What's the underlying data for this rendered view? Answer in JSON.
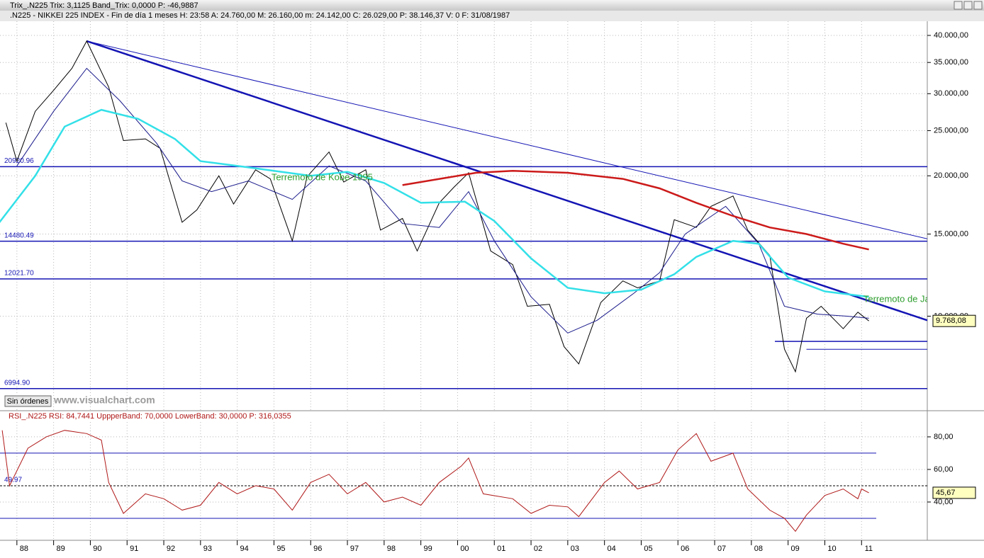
{
  "window": {
    "title": "Trix_.N225  Trix: 3,1125  Band_Trix: 0,0000  P: -46,9887",
    "button": "Sin órdenes",
    "watermark": "www.visualchart.com"
  },
  "chart_data": [
    {
      "type": "line",
      "title": ".N225 - NIKKEI 225 INDEX - Fin de día 1 meses  H: 23:58  A: 24.760,00  M: 26.160,00  m: 24.142,00  C: 26.029,00  P: 38.146,37  V: 0  F: 31/08/1987",
      "yscale": "log",
      "grid": true,
      "xlim": [
        1987.54,
        2012.79
      ],
      "ylim": [
        6270,
        42900
      ],
      "yticks": [
        {
          "value": 10000,
          "label": "10.000,00"
        },
        {
          "value": 15000,
          "label": "15.000,00"
        },
        {
          "value": 20000,
          "label": "20.000,00"
        },
        {
          "value": 25000,
          "label": "25.000,00"
        },
        {
          "value": 30000,
          "label": "30.000,00"
        },
        {
          "value": 35000,
          "label": "35.000,00"
        },
        {
          "value": 40000,
          "label": "40.000,00"
        }
      ],
      "series": [
        {
          "name": "N225",
          "color": "#000000",
          "width": 1,
          "x": [
            1987.7,
            1988.0,
            1988.5,
            1989.0,
            1989.5,
            1989.9,
            1990.5,
            1990.9,
            1991.5,
            1991.9,
            1992.5,
            1992.9,
            1993.5,
            1993.9,
            1994.5,
            1994.9,
            1995.5,
            1995.9,
            1996.5,
            1996.9,
            1997.5,
            1997.9,
            1998.5,
            1998.9,
            1999.5,
            1999.9,
            2000.3,
            2000.9,
            2001.5,
            2001.9,
            2002.5,
            2002.9,
            2003.3,
            2003.9,
            2004.5,
            2004.9,
            2005.5,
            2005.9,
            2006.5,
            2006.9,
            2007.5,
            2007.9,
            2008.5,
            2008.9,
            2009.2,
            2009.5,
            2009.9,
            2010.5,
            2010.9,
            2011.2
          ],
          "values": [
            26000,
            21500,
            27500,
            30500,
            34000,
            38900,
            31000,
            23800,
            24000,
            22900,
            15900,
            16900,
            20000,
            17400,
            20600,
            19700,
            14500,
            19900,
            22500,
            19400,
            20600,
            15300,
            16200,
            13800,
            17500,
            18900,
            20300,
            13800,
            12900,
            10500,
            10600,
            8600,
            7900,
            10700,
            11900,
            11500,
            11900,
            16100,
            15500,
            17200,
            18100,
            15300,
            13500,
            8500,
            7600,
            9900,
            10500,
            9400,
            10200,
            9768.08
          ]
        },
        {
          "name": "MA short",
          "color": "#1a1a8c",
          "width": 1,
          "x": [
            1988.0,
            1989.0,
            1989.9,
            1990.8,
            1991.8,
            1992.5,
            1993.3,
            1994.3,
            1995.5,
            1996.5,
            1997.5,
            1998.5,
            1999.5,
            2000.3,
            2001.0,
            2002.0,
            2003.0,
            2003.8,
            2004.8,
            2005.5,
            2006.2,
            2007.3,
            2008.2,
            2008.9,
            2009.8,
            2010.6,
            2011.2
          ],
          "values": [
            21000,
            27500,
            34000,
            29000,
            23500,
            19500,
            18500,
            19500,
            17800,
            21000,
            19500,
            15800,
            15500,
            18500,
            14500,
            11000,
            9200,
            9800,
            11200,
            12400,
            15000,
            17200,
            14300,
            10500,
            10100,
            10000,
            9900
          ]
        },
        {
          "name": "MA long",
          "color": "#33e0e8",
          "width": 2.5,
          "x": [
            1987.5,
            1988.5,
            1989.3,
            1990.3,
            1991.3,
            1992.3,
            1993.0,
            1994.0,
            1995.0,
            1996.0,
            1997.0,
            1998.0,
            1999.0,
            2000.2,
            2001.0,
            2002.0,
            2003.0,
            2004.0,
            2005.0,
            2005.9,
            2006.5,
            2007.5,
            2008.2,
            2009.0,
            2010.0,
            2011.2
          ],
          "values": [
            15800,
            20000,
            25500,
            27700,
            26500,
            24000,
            21500,
            21000,
            20500,
            20000,
            20400,
            19300,
            17500,
            17600,
            16000,
            13300,
            11500,
            11200,
            11400,
            12300,
            13400,
            14500,
            14300,
            12100,
            11300,
            11000
          ]
        },
        {
          "name": "MA 200",
          "color": "#cc1a1a",
          "width": 2.5,
          "x": [
            1998.5,
            2000.5,
            2001.5,
            2003.0,
            2004.5,
            2005.5,
            2006.5,
            2007.5,
            2008.5,
            2009.5,
            2010.5,
            2011.2
          ],
          "values": [
            19100,
            20300,
            20500,
            20300,
            19700,
            18800,
            17500,
            16400,
            15500,
            15000,
            14300,
            13900
          ]
        }
      ],
      "trendlines": [
        {
          "color": "#1414b4",
          "width": 2.5,
          "x": [
            1989.9,
            2012.79
          ],
          "values": [
            38900,
            9800
          ]
        },
        {
          "color": "#1414b4",
          "width": 1,
          "x": [
            1989.9,
            2012.79
          ],
          "values": [
            38900,
            14650
          ]
        }
      ],
      "levels": [
        {
          "value": 20920.96,
          "label": "20920.96"
        },
        {
          "value": 14480.49,
          "label": "14480.49"
        },
        {
          "value": 12021.7,
          "label": "12021.70"
        },
        {
          "value": 6994.9,
          "label": "6994.90"
        }
      ],
      "short_levels": [
        {
          "value": 8830,
          "x_start": 2008.64
        },
        {
          "value": 8490,
          "x_start": 2009.5
        }
      ],
      "annotations": [
        {
          "text": "Terremoto de Kobe 1995",
          "x": 1994.93,
          "y": 19800,
          "color": "#2e9e2e"
        },
        {
          "text": "Terremoto de Japón",
          "x": 2011.05,
          "y": 10850,
          "color": "#2e9e2e"
        }
      ],
      "last_value": {
        "value": 9768.08,
        "label": "9.768,08"
      }
    },
    {
      "type": "line",
      "title": "RSI_.N225  RSI: 84,7441  UppperBand: 70,0000  LowerBand: 30,0000  P: 316,0355",
      "grid": true,
      "xlim": [
        1987.54,
        2012.79
      ],
      "ylim": [
        16.5,
        89.1
      ],
      "yticks": [
        {
          "value": 40,
          "label": "40,00"
        },
        {
          "value": 60,
          "label": "60,00"
        },
        {
          "value": 80,
          "label": "80,00"
        }
      ],
      "xticks": [
        {
          "value": 1988,
          "label": "88"
        },
        {
          "value": 1989,
          "label": "89"
        },
        {
          "value": 1990,
          "label": "90"
        },
        {
          "value": 1991,
          "label": "91"
        },
        {
          "value": 1992,
          "label": "92"
        },
        {
          "value": 1993,
          "label": "93"
        },
        {
          "value": 1994,
          "label": "94"
        },
        {
          "value": 1995,
          "label": "95"
        },
        {
          "value": 1996,
          "label": "96"
        },
        {
          "value": 1997,
          "label": "97"
        },
        {
          "value": 1998,
          "label": "98"
        },
        {
          "value": 1999,
          "label": "99"
        },
        {
          "value": 2000,
          "label": "00"
        },
        {
          "value": 2001,
          "label": "01"
        },
        {
          "value": 2002,
          "label": "02"
        },
        {
          "value": 2003,
          "label": "03"
        },
        {
          "value": 2004,
          "label": "04"
        },
        {
          "value": 2005,
          "label": "05"
        },
        {
          "value": 2006,
          "label": "06"
        },
        {
          "value": 2007,
          "label": "07"
        },
        {
          "value": 2008,
          "label": "08"
        },
        {
          "value": 2009,
          "label": "09"
        },
        {
          "value": 2010,
          "label": "10"
        },
        {
          "value": 2011,
          "label": "11"
        }
      ],
      "series": [
        {
          "name": "RSI",
          "color": "#b01818",
          "width": 1,
          "x": [
            1987.6,
            1987.8,
            1988.3,
            1988.8,
            1989.3,
            1989.9,
            1990.3,
            1990.5,
            1990.9,
            1991.5,
            1992.0,
            1992.5,
            1993.0,
            1993.5,
            1994.0,
            1994.5,
            1995.0,
            1995.5,
            1996.0,
            1996.5,
            1997.0,
            1997.5,
            1998.0,
            1998.5,
            1999.0,
            1999.5,
            2000.1,
            2000.3,
            2000.7,
            2001.5,
            2002.0,
            2002.5,
            2003.0,
            2003.3,
            2004.0,
            2004.4,
            2004.9,
            2005.5,
            2006.0,
            2006.5,
            2006.9,
            2007.5,
            2007.9,
            2008.5,
            2008.9,
            2009.2,
            2009.5,
            2010.0,
            2010.5,
            2010.9,
            2011.0,
            2011.2
          ],
          "values": [
            84,
            50,
            73,
            80,
            84,
            82,
            78,
            52,
            33,
            45,
            42,
            35,
            38,
            52,
            45,
            50,
            48,
            35,
            52,
            57,
            45,
            52,
            40,
            43,
            38,
            52,
            62,
            67,
            45,
            42,
            33,
            38,
            37,
            31,
            52,
            59,
            48,
            52,
            72,
            82,
            65,
            70,
            48,
            35,
            30,
            22,
            32,
            44,
            48,
            42,
            48,
            45.67
          ]
        }
      ],
      "bands": [
        {
          "value": 70
        },
        {
          "value": 30
        }
      ],
      "band_end": 2011.4,
      "midline": {
        "value": 49.97,
        "label": "49.97"
      },
      "last_value": {
        "value": 45.67,
        "label": "45,67"
      }
    }
  ]
}
